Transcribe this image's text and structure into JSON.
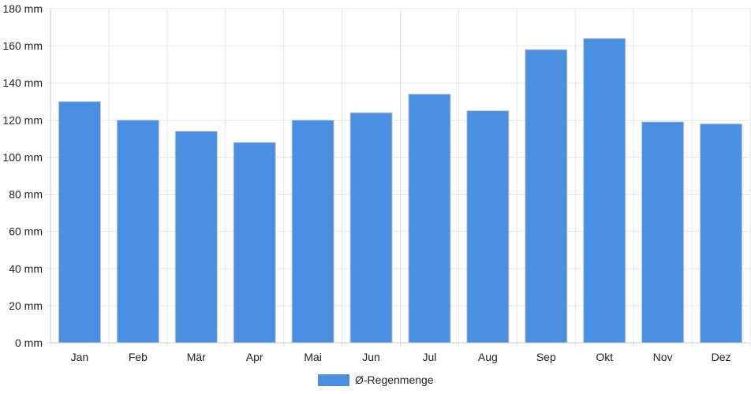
{
  "chart_data": {
    "type": "bar",
    "categories": [
      "Jan",
      "Feb",
      "Mär",
      "Apr",
      "Mai",
      "Jun",
      "Jul",
      "Aug",
      "Sep",
      "Okt",
      "Nov",
      "Dez"
    ],
    "series": [
      {
        "name": "Ø-Regenmenge",
        "values": [
          130,
          120,
          114,
          108,
          120,
          124,
          134,
          125,
          158,
          164,
          119,
          118
        ],
        "color": "#4a90e2"
      }
    ],
    "title": "",
    "xlabel": "",
    "ylabel": "",
    "ylim": [
      0,
      180
    ],
    "ytick_step": 20,
    "ytick_unit": "mm",
    "grid": true,
    "legend_position": "bottom-center"
  }
}
